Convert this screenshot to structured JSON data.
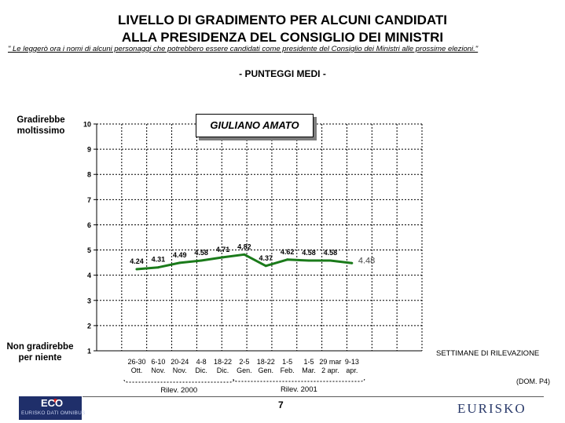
{
  "header": {
    "title_line1": "LIVELLO DI GRADIMENTO PER ALCUNI CANDIDATI",
    "title_line2": "ALLA PRESIDENZA DEL CONSIGLIO DEI MINISTRI",
    "question_text": "\" Le leggerò ora i nomi di alcuni personaggi che potrebbero essere candidati come presidente del Consiglio dei Ministri alle prossime elezioni.\"",
    "subheading": "- PUNTEGGI MEDI -"
  },
  "chart_data": {
    "type": "line",
    "title": "GIULIANO AMATO",
    "y_top_label": "Gradirebbe moltissimo",
    "y_bottom_label": "Non gradirebbe per niente",
    "ylim": [
      1,
      10
    ],
    "yticks": [
      "1",
      "2",
      "3",
      "4",
      "5",
      "6",
      "7",
      "8",
      "9",
      "10"
    ],
    "xlabel": "SETTIMANE DI RILEVAZIONE",
    "categories": [
      {
        "line1": "26-30",
        "line2": "Ott."
      },
      {
        "line1": "6-10",
        "line2": "Nov."
      },
      {
        "line1": "20-24",
        "line2": "Nov."
      },
      {
        "line1": "4-8",
        "line2": "Dic."
      },
      {
        "line1": "18-22",
        "line2": "Dic."
      },
      {
        "line1": "2-5",
        "line2": "Gen."
      },
      {
        "line1": "18-22",
        "line2": "Gen."
      },
      {
        "line1": "1-5",
        "line2": "Feb."
      },
      {
        "line1": "1-5",
        "line2": "Mar."
      },
      {
        "line1": "29 mar",
        "line2": "2 apr."
      },
      {
        "line1": "9-13",
        "line2": "apr."
      }
    ],
    "values": [
      4.24,
      4.31,
      4.49,
      4.58,
      4.71,
      4.82,
      4.37,
      4.62,
      4.58,
      4.58,
      4.48
    ],
    "data_labels": [
      "4.24",
      "4.31",
      "4.49",
      "4.58",
      "4.71",
      "4.82",
      "4.37",
      "4.62",
      "4.58",
      "4.58",
      "4.48"
    ],
    "groups": [
      {
        "label": "Rilev. 2000"
      },
      {
        "label": "Rilev. 2001"
      }
    ],
    "grid": true,
    "line_color": "#1a7a1a"
  },
  "footer": {
    "source_ref": "(DOM. P4)",
    "page_number": "7",
    "logo_left_text": "ECO",
    "logo_left_subtext": "EURISKO DATI OMNIBUS",
    "logo_right_text": "EURISKO"
  }
}
